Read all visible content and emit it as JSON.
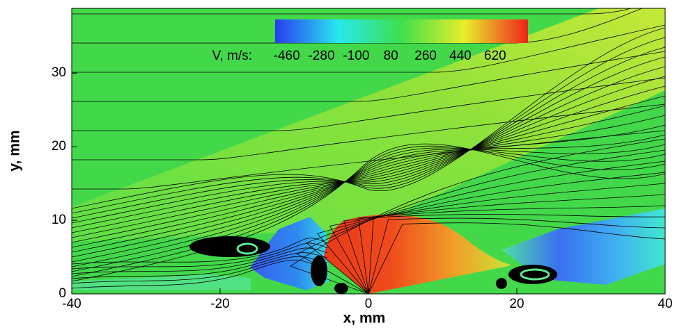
{
  "chart_data": {
    "type": "contour",
    "xlabel": "x, mm",
    "ylabel": "y, mm",
    "xlim": [
      -40,
      40
    ],
    "ylim": [
      0,
      38.8
    ],
    "xticks": [
      -40,
      -20,
      0,
      20,
      40
    ],
    "yticks": [
      0,
      10,
      20,
      30
    ],
    "colorbar": {
      "label": "V, m/s:",
      "clim": [
        -520,
        790
      ],
      "ticks": [
        -460,
        -280,
        -100,
        80,
        260,
        440,
        620
      ],
      "colormap": [
        "#2a3cf0",
        "#27e8f0",
        "#3ee04a",
        "#e8ee2a",
        "#f0221a"
      ]
    }
  }
}
